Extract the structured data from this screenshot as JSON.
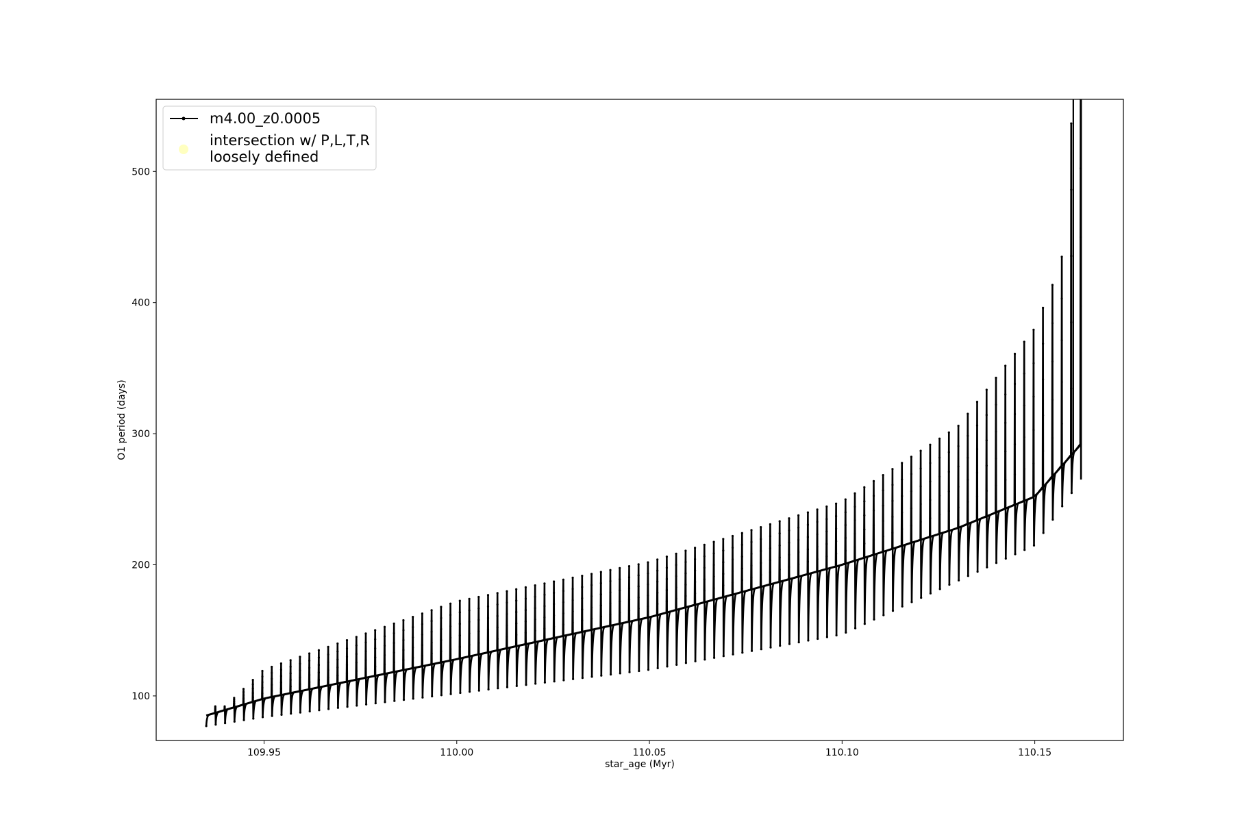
{
  "chart_data": {
    "type": "line",
    "title": "",
    "xlabel": "star_age (Myr)",
    "ylabel": "O1 period (days)",
    "xlim": [
      109.922,
      110.173
    ],
    "ylim": [
      66,
      555
    ],
    "x_ticks": [
      {
        "value": 109.95,
        "label": "109.95"
      },
      {
        "value": 110.0,
        "label": "110.00"
      },
      {
        "value": 110.05,
        "label": "110.05"
      },
      {
        "value": 110.1,
        "label": "110.10"
      },
      {
        "value": 110.15,
        "label": "110.15"
      }
    ],
    "y_ticks": [
      {
        "value": 100,
        "label": "100"
      },
      {
        "value": 200,
        "label": "200"
      },
      {
        "value": 300,
        "label": "300"
      },
      {
        "value": 400,
        "label": "400"
      },
      {
        "value": 500,
        "label": "500"
      }
    ],
    "grid": false,
    "legend_position": "top-left",
    "legend": [
      {
        "label": "m4.00_z0.0005",
        "marker": "line-with-dots",
        "color": "#000000"
      },
      {
        "label_lines": [
          "intersection w/ P,L,T,R",
          "loosely defined"
        ],
        "marker": "circle",
        "color": "#ffffc0"
      }
    ],
    "series": [
      {
        "name": "m4.00_z0.0005",
        "color": "#000000",
        "x_start": 109.935,
        "x_end": 110.162,
        "pulse_count": 93,
        "baseline": [
          {
            "x": 109.935,
            "y": 85
          },
          {
            "x": 109.95,
            "y": 98
          },
          {
            "x": 109.97,
            "y": 110
          },
          {
            "x": 110.0,
            "y": 128
          },
          {
            "x": 110.05,
            "y": 160
          },
          {
            "x": 110.1,
            "y": 200
          },
          {
            "x": 110.13,
            "y": 228
          },
          {
            "x": 110.15,
            "y": 252
          },
          {
            "x": 110.162,
            "y": 292
          }
        ],
        "dip_minimum": [
          {
            "x": 109.935,
            "y": 77
          },
          {
            "x": 109.95,
            "y": 84
          },
          {
            "x": 110.0,
            "y": 102
          },
          {
            "x": 110.05,
            "y": 120
          },
          {
            "x": 110.1,
            "y": 147
          },
          {
            "x": 110.15,
            "y": 215
          },
          {
            "x": 110.162,
            "y": 265
          }
        ],
        "spike_maximum": [
          {
            "x": 109.94,
            "y": 92
          },
          {
            "x": 109.95,
            "y": 120
          },
          {
            "x": 110.0,
            "y": 172
          },
          {
            "x": 110.05,
            "y": 202
          },
          {
            "x": 110.1,
            "y": 248
          },
          {
            "x": 110.13,
            "y": 305
          },
          {
            "x": 110.15,
            "y": 380
          },
          {
            "x": 110.157,
            "y": 430
          },
          {
            "x": 110.16,
            "y": 555
          }
        ]
      }
    ]
  }
}
